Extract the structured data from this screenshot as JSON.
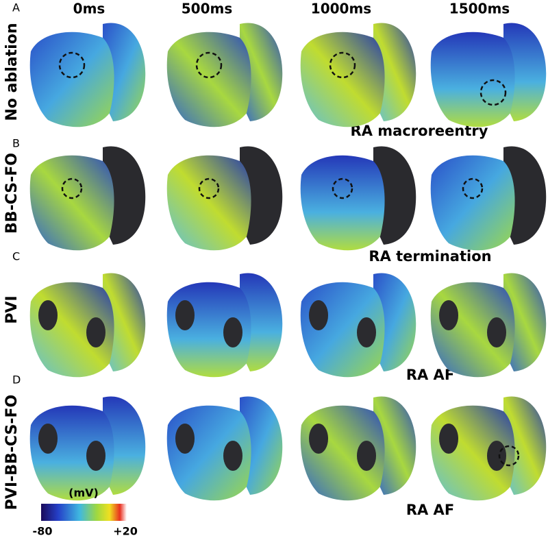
{
  "column_headers": [
    "0ms",
    "500ms",
    "1000ms",
    "1500ms"
  ],
  "panels": [
    {
      "letter": "A",
      "row_label": "No ablation",
      "caption": "RA macroreentry"
    },
    {
      "letter": "B",
      "row_label": "BB-CS-FO",
      "caption": "RA termination"
    },
    {
      "letter": "C",
      "row_label": "PVI",
      "caption": "RA AF"
    },
    {
      "letter": "D",
      "row_label": "PVI-BB-CS-FO",
      "caption": "RA AF"
    }
  ],
  "colorbar": {
    "unit": "(mV)",
    "min_label": "-80",
    "max_label": "+20"
  }
}
